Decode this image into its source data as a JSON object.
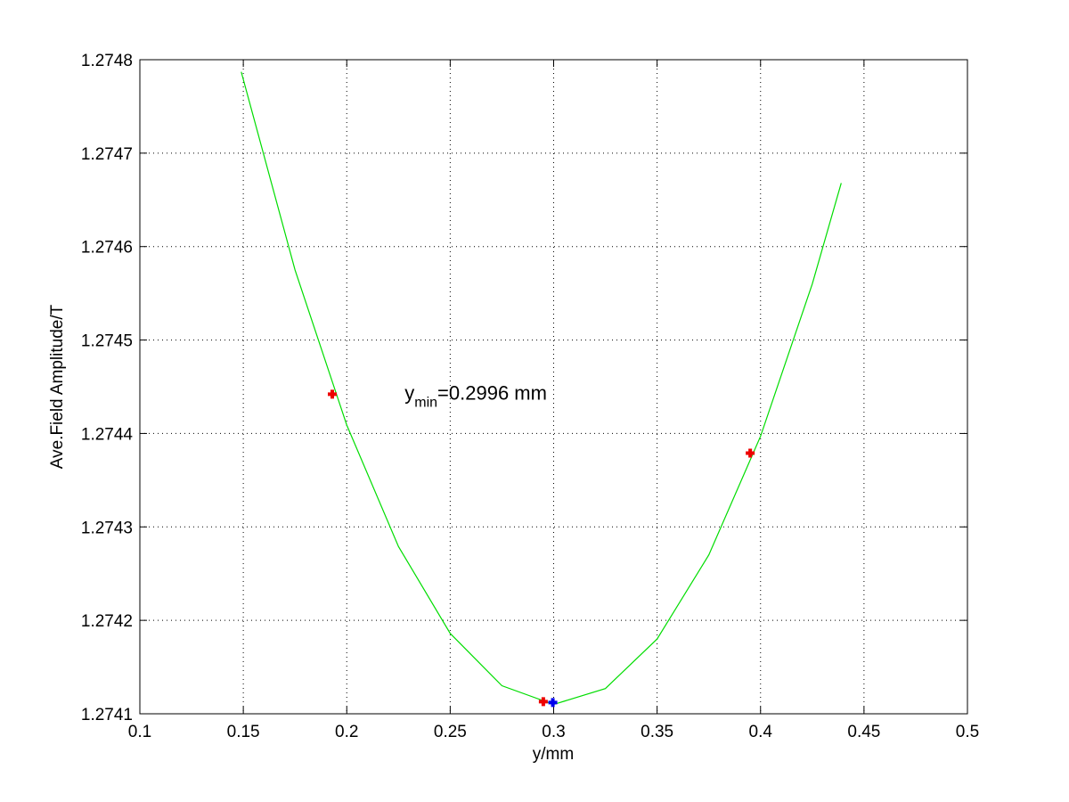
{
  "chart_data": {
    "type": "line",
    "xlabel": "y/mm",
    "ylabel": "Ave.Field Amplitude/T",
    "xlim": [
      0.1,
      0.5
    ],
    "xticks": [
      0.1,
      0.15,
      0.2,
      0.25,
      0.3,
      0.35,
      0.4,
      0.45,
      0.5
    ],
    "ylim": [
      1.2741,
      1.2748
    ],
    "yticks": [
      1.2741,
      1.2742,
      1.2743,
      1.2744,
      1.2745,
      1.2746,
      1.2747,
      1.2748
    ],
    "grid": true,
    "series": [
      {
        "type": "line",
        "color": "#00dd00",
        "x": [
          0.149,
          0.175,
          0.2,
          0.225,
          0.25,
          0.275,
          0.3,
          0.325,
          0.35,
          0.375,
          0.4,
          0.425,
          0.439
        ],
        "values": [
          1.274787,
          1.274575,
          1.274409,
          1.274279,
          1.274186,
          1.27413,
          1.27411,
          1.274127,
          1.27418,
          1.27427,
          1.274397,
          1.27456,
          1.274668
        ]
      },
      {
        "type": "scatter",
        "color": "#ee0000",
        "x": [
          0.193,
          0.295,
          0.395
        ],
        "values": [
          1.274442,
          1.274113,
          1.274379
        ]
      },
      {
        "type": "scatter",
        "color": "#0000ee",
        "x": [
          0.2996
        ],
        "values": [
          1.274112
        ]
      }
    ],
    "annotation": {
      "base": "y",
      "sub": "min",
      "text": "=0.2996 mm",
      "x": 0.228,
      "y": 1.27444
    }
  }
}
